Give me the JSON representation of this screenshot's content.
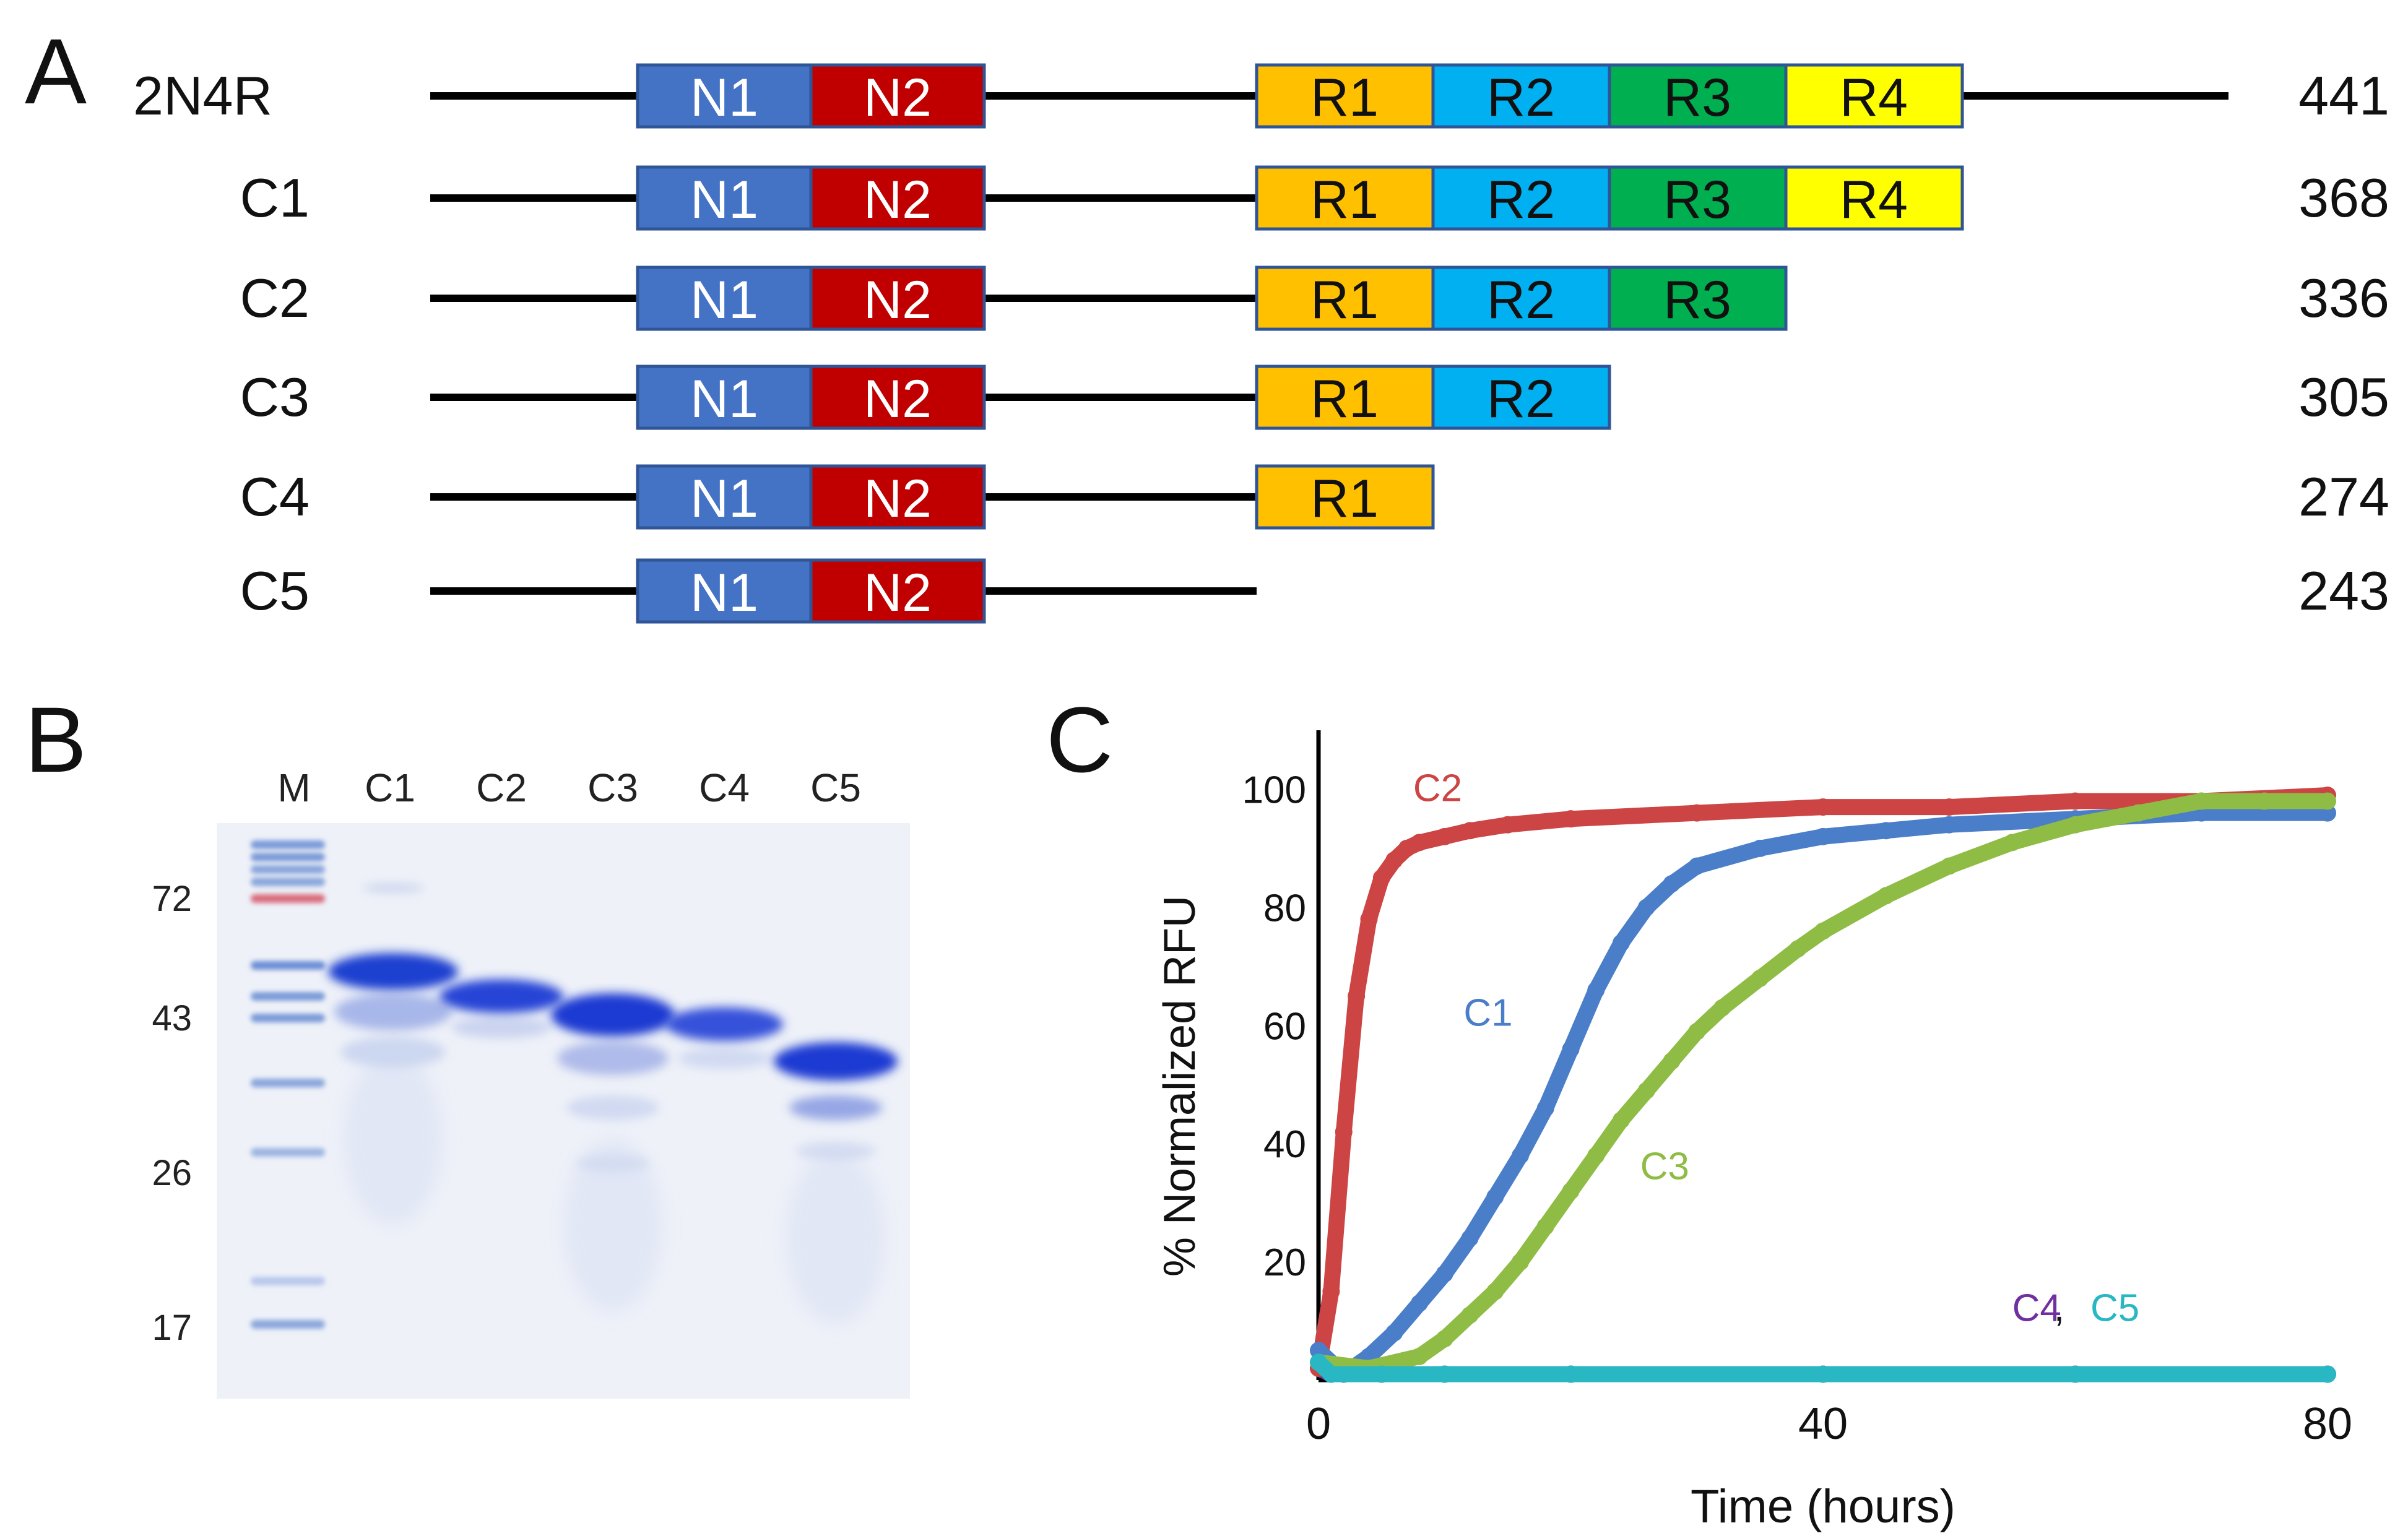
{
  "panel_labels": {
    "a": "A",
    "b": "B",
    "c": "C"
  },
  "colors": {
    "N1": "#4472c4",
    "N2": "#c00000",
    "R1": "#ffc000",
    "R2": "#00b0f0",
    "R3": "#00b050",
    "R4": "#ffff00",
    "domain_border": "#2f5597",
    "line": "#000000",
    "C1": "#4a7ec9",
    "C2": "#cc4444",
    "C3": "#8fbc44",
    "C4": "#7030a0",
    "C5": "#2ab7c4"
  },
  "constructs": [
    {
      "name": "2N4R",
      "length": "441",
      "repeats": [
        "R1",
        "R2",
        "R3",
        "R4"
      ],
      "c_tail": true,
      "n_domains": [
        "N1",
        "N2"
      ]
    },
    {
      "name": "C1",
      "length": "368",
      "repeats": [
        "R1",
        "R2",
        "R3",
        "R4"
      ],
      "c_tail": false,
      "n_domains": [
        "N1",
        "N2"
      ]
    },
    {
      "name": "C2",
      "length": "336",
      "repeats": [
        "R1",
        "R2",
        "R3"
      ],
      "c_tail": false,
      "n_domains": [
        "N1",
        "N2"
      ]
    },
    {
      "name": "C3",
      "length": "305",
      "repeats": [
        "R1",
        "R2"
      ],
      "c_tail": false,
      "n_domains": [
        "N1",
        "N2"
      ]
    },
    {
      "name": "C4",
      "length": "274",
      "repeats": [
        "R1"
      ],
      "c_tail": false,
      "n_domains": [
        "N1",
        "N2"
      ]
    },
    {
      "name": "C5",
      "length": "243",
      "repeats": [],
      "c_tail": false,
      "n_domains": [
        "N1",
        "N2"
      ]
    }
  ],
  "gel": {
    "lanes": [
      "M",
      "C1",
      "C2",
      "C3",
      "C4",
      "C5"
    ],
    "markers_kda": [
      "72",
      "43",
      "26",
      "17"
    ]
  },
  "chart_data": {
    "type": "line",
    "title": "",
    "xlabel": "Time (hours)",
    "ylabel": "% Normalized RFU",
    "xlim": [
      0,
      80
    ],
    "ylim": [
      0,
      110
    ],
    "xticks": [
      0,
      40,
      80
    ],
    "yticks": [
      20,
      40,
      60,
      80,
      100
    ],
    "series": [
      {
        "name": "C2",
        "color": "#cc4444",
        "x": [
          0,
          1,
          2,
          3,
          4,
          5,
          6,
          7,
          8,
          10,
          12,
          15,
          20,
          30,
          40,
          50,
          60,
          70,
          80
        ],
        "y": [
          2,
          15,
          42,
          65,
          78,
          85,
          88,
          90,
          91,
          92,
          93,
          94,
          95,
          96,
          97,
          97,
          98,
          98,
          99
        ]
      },
      {
        "name": "C1",
        "color": "#4a7ec9",
        "x": [
          0,
          2,
          4,
          6,
          8,
          10,
          12,
          14,
          16,
          18,
          20,
          22,
          24,
          26,
          28,
          30,
          35,
          40,
          45,
          50,
          60,
          70,
          80
        ],
        "y": [
          5,
          1,
          4,
          8,
          13,
          18,
          24,
          31,
          38,
          46,
          56,
          66,
          74,
          80,
          84,
          87,
          90,
          92,
          93,
          94,
          95,
          96,
          96
        ]
      },
      {
        "name": "C3",
        "color": "#8fbc44",
        "x": [
          0,
          4,
          8,
          10,
          12,
          14,
          16,
          18,
          20,
          22,
          24,
          26,
          28,
          30,
          32,
          35,
          38,
          40,
          45,
          50,
          55,
          60,
          65,
          70,
          75,
          80
        ],
        "y": [
          3,
          2,
          4,
          7,
          11,
          15,
          20,
          26,
          32,
          38,
          44,
          49,
          54,
          59,
          63,
          68,
          73,
          76,
          82,
          87,
          91,
          94,
          96,
          98,
          98,
          98
        ]
      },
      {
        "name": "C4",
        "color": "#7030a0",
        "x": [
          0,
          1,
          5,
          10,
          20,
          40,
          60,
          80
        ],
        "y": [
          2,
          1,
          1,
          1,
          1,
          1,
          1,
          1
        ]
      },
      {
        "name": "C5",
        "color": "#2ab7c4",
        "x": [
          0,
          1,
          5,
          10,
          20,
          40,
          60,
          80
        ],
        "y": [
          3,
          1,
          1,
          1,
          1,
          1,
          1,
          1
        ]
      }
    ],
    "annotations": [
      {
        "text": "C2",
        "series": "C2"
      },
      {
        "text": "C1",
        "series": "C1"
      },
      {
        "text": "C3",
        "series": "C3"
      },
      {
        "text": "C4",
        "series": "C4"
      },
      {
        "text": ",",
        "series": "none"
      },
      {
        "text": "C5",
        "series": "C5"
      }
    ]
  }
}
